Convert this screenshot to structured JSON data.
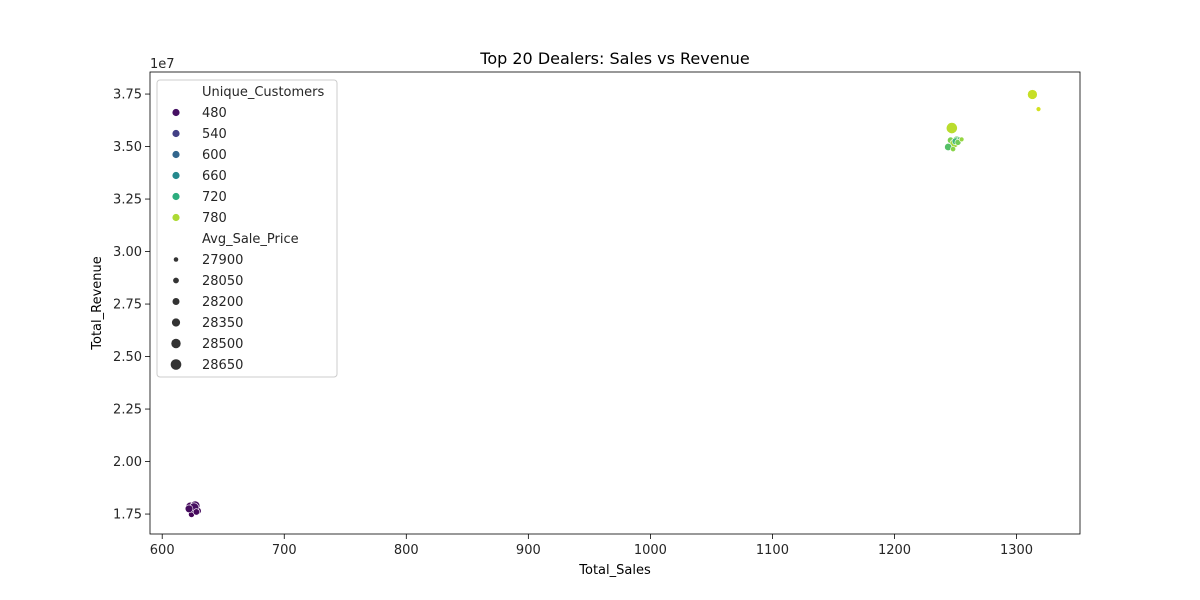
{
  "chart_data": {
    "type": "scatter",
    "title": "Top 20 Dealers: Sales vs Revenue",
    "xlabel": "Total_Sales",
    "ylabel": "Total_Revenue",
    "y_offset_label": "1e7",
    "xlim": [
      590,
      1352
    ],
    "ylim": [
      16550000.0,
      38550000.0
    ],
    "xticks": [
      600,
      700,
      800,
      900,
      1000,
      1100,
      1200,
      1300
    ],
    "xtick_labels": [
      "600",
      "700",
      "800",
      "900",
      "1000",
      "1100",
      "1200",
      "1300"
    ],
    "yticks": [
      17500000,
      20000000,
      22500000,
      25000000,
      27500000,
      30000000,
      32500000,
      35000000,
      37500000
    ],
    "ytick_labels": [
      "1.75",
      "2.00",
      "2.25",
      "2.50",
      "2.75",
      "3.00",
      "3.25",
      "3.50",
      "3.75"
    ],
    "grid": false,
    "legend_placement": "upper-left",
    "hue_field": "Unique_Customers",
    "size_field": "Avg_Sale_Price",
    "hue_domain": [
      460,
      800
    ],
    "size_domain": [
      27850,
      28700
    ],
    "legend": {
      "hue_title": "Unique_Customers",
      "hue_entries": [
        {
          "label": "480",
          "value": 480
        },
        {
          "label": "540",
          "value": 540
        },
        {
          "label": "600",
          "value": 600
        },
        {
          "label": "660",
          "value": 660
        },
        {
          "label": "720",
          "value": 720
        },
        {
          "label": "780",
          "value": 780
        }
      ],
      "size_title": "Avg_Sale_Price",
      "size_entries": [
        {
          "label": "27900",
          "value": 27900
        },
        {
          "label": "28050",
          "value": 28050
        },
        {
          "label": "28200",
          "value": 28200
        },
        {
          "label": "28350",
          "value": 28350
        },
        {
          "label": "28500",
          "value": 28500
        },
        {
          "label": "28650",
          "value": 28650
        }
      ]
    },
    "points": [
      {
        "x": 623,
        "y": 17850000,
        "hue": 470,
        "size": 28400
      },
      {
        "x": 627,
        "y": 17900000,
        "hue": 475,
        "size": 28450
      },
      {
        "x": 625,
        "y": 17700000,
        "hue": 468,
        "size": 28300
      },
      {
        "x": 629,
        "y": 17650000,
        "hue": 472,
        "size": 28200
      },
      {
        "x": 624,
        "y": 17480000,
        "hue": 465,
        "size": 28050
      },
      {
        "x": 626,
        "y": 17800000,
        "hue": 478,
        "size": 28500
      },
      {
        "x": 628,
        "y": 17600000,
        "hue": 470,
        "size": 28100
      },
      {
        "x": 622,
        "y": 17750000,
        "hue": 474,
        "size": 28250
      },
      {
        "x": 1313,
        "y": 37480000,
        "hue": 790,
        "size": 28500
      },
      {
        "x": 1318,
        "y": 36780000,
        "hue": 795,
        "size": 27900
      },
      {
        "x": 1247,
        "y": 35880000,
        "hue": 785,
        "size": 28650
      },
      {
        "x": 1246,
        "y": 35300000,
        "hue": 760,
        "size": 28100
      },
      {
        "x": 1251,
        "y": 35300000,
        "hue": 745,
        "size": 28300
      },
      {
        "x": 1253,
        "y": 35320000,
        "hue": 735,
        "size": 28000
      },
      {
        "x": 1249,
        "y": 35150000,
        "hue": 775,
        "size": 28350
      },
      {
        "x": 1244,
        "y": 34980000,
        "hue": 740,
        "size": 28200
      },
      {
        "x": 1248,
        "y": 34880000,
        "hue": 765,
        "size": 27950
      },
      {
        "x": 1250,
        "y": 35250000,
        "hue": 730,
        "size": 28150
      },
      {
        "x": 1252,
        "y": 35200000,
        "hue": 755,
        "size": 28050
      },
      {
        "x": 1255,
        "y": 35340000,
        "hue": 770,
        "size": 27900
      }
    ]
  }
}
